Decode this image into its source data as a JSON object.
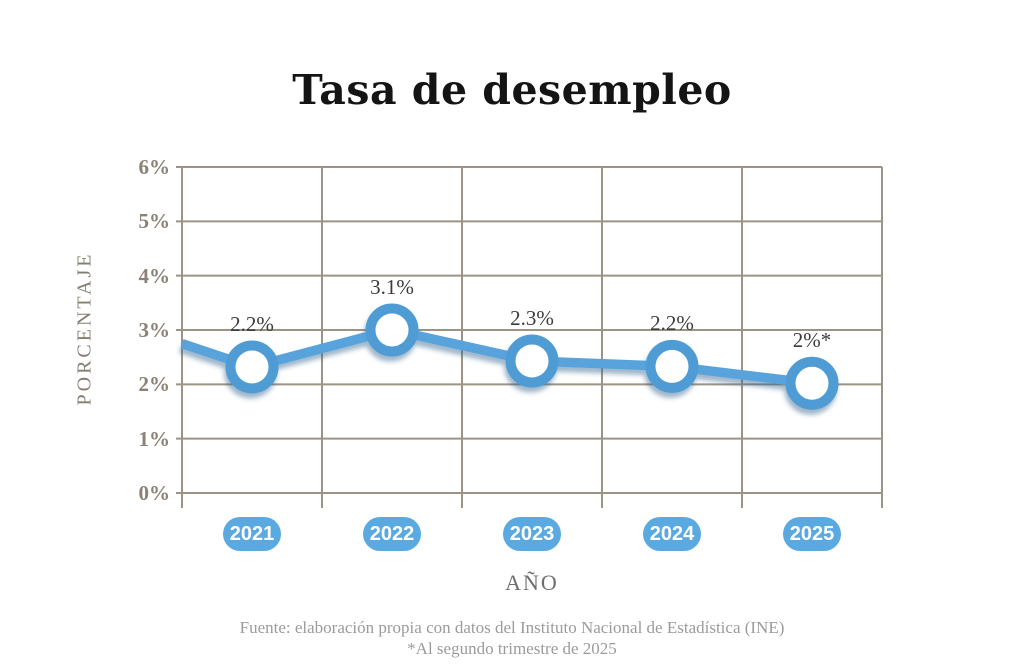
{
  "page": {
    "title": "Tasa de desempleo",
    "source_line": "Fuente: elaboración propia con datos del Instituto Nacional de Estadística (INE)",
    "footnote": "*Al segundo trimestre de 2025"
  },
  "chart_data": {
    "type": "line",
    "title": "Tasa de desempleo",
    "xlabel": "AÑO",
    "ylabel": "PORCENTAJE",
    "categories": [
      "2021",
      "2022",
      "2023",
      "2024",
      "2025"
    ],
    "values": [
      2.2,
      3.1,
      2.3,
      2.2,
      2.0
    ],
    "point_labels": [
      "2.2%",
      "3.1%",
      "2.3%",
      "2.2%",
      "2%*"
    ],
    "y_ticks": [
      "0%",
      "1%",
      "2%",
      "3%",
      "4%",
      "5%",
      "6%"
    ],
    "ylim": [
      0,
      6
    ],
    "grid": true,
    "legend": false,
    "layout_hints": {
      "plotted_values": [
        2.32,
        3.0,
        2.43,
        2.33,
        2.02
      ],
      "line_entry_value_at_left_edge": 2.75,
      "x_ticks_below_axis": true
    },
    "colors": {
      "line": "#58a3dc",
      "marker_fill": "#ffffff",
      "marker_ring": "#4f9cd4",
      "shadow": "#2c5f8a",
      "badge": "#5aa9e0",
      "badge_text": "#ffffff",
      "grid": "#9c9385",
      "axis_text": "#8b8174",
      "point_label_text": "#3b3b3b",
      "footer_text": "#9b9b9b"
    }
  }
}
